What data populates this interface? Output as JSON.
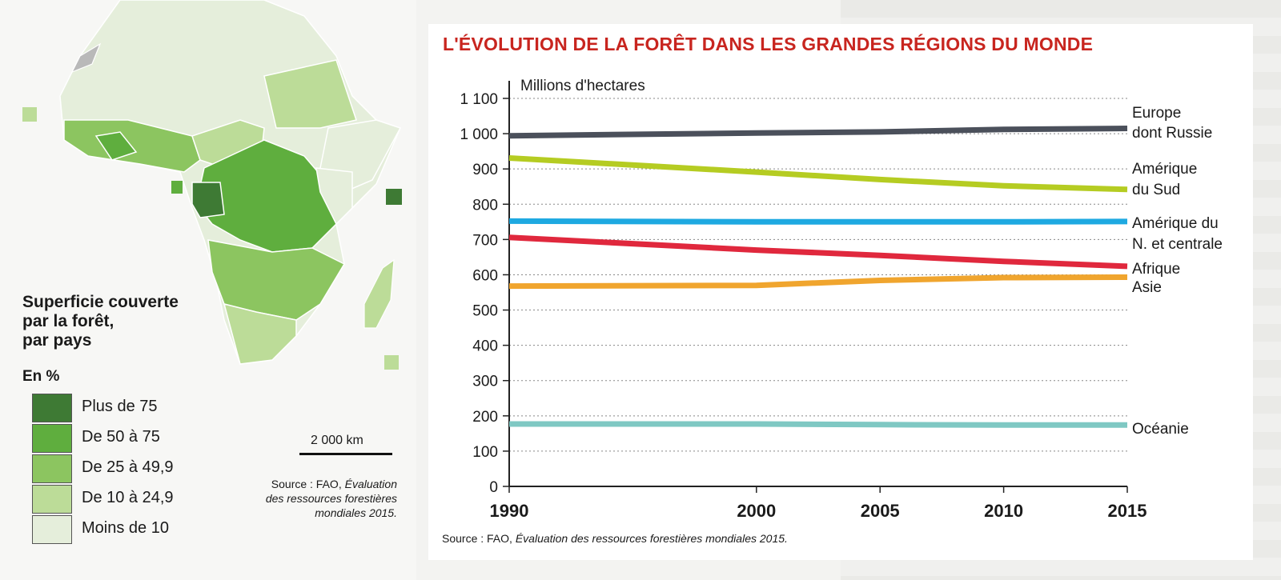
{
  "map": {
    "legend_title_lines": [
      "Superficie couverte",
      "par la forêt,",
      "par pays"
    ],
    "legend_unit": "En %",
    "legend_items": [
      {
        "label": "Plus de 75",
        "color": "#3e7a34"
      },
      {
        "label": "De 50 à 75",
        "color": "#5fae3e"
      },
      {
        "label": "De 25 à 49,9",
        "color": "#8cc560"
      },
      {
        "label": "De 10 à 24,9",
        "color": "#bcdc98"
      },
      {
        "label": "Moins de 10",
        "color": "#e5eedb"
      }
    ],
    "scale_label": "2 000 km",
    "source_prefix": "Source : FAO,",
    "source_italic": "Évaluation des ressources forestières mondiales 2015."
  },
  "chart_data": {
    "type": "line",
    "title": "L'ÉVOLUTION DE LA FORÊT DANS LES GRANDES RÉGIONS DU MONDE",
    "ylabel": "Millions d'hectares",
    "xlabel": "",
    "x": [
      1990,
      2000,
      2005,
      2010,
      2015
    ],
    "x_tick_labels": [
      "1990",
      "2000",
      "2005",
      "2010",
      "2015"
    ],
    "ylim": [
      0,
      1100
    ],
    "y_ticks": [
      0,
      100,
      200,
      300,
      400,
      500,
      600,
      700,
      800,
      900,
      1000,
      1100
    ],
    "y_tick_labels": [
      "0",
      "100",
      "200",
      "300",
      "400",
      "500",
      "600",
      "700",
      "800",
      "900",
      "1 000",
      "1 100"
    ],
    "grid": true,
    "series": [
      {
        "name": "Europe dont Russie",
        "label_lines": [
          "Europe",
          "dont Russie"
        ],
        "color": "#4b505b",
        "values": [
          994,
          1002,
          1005,
          1012,
          1015
        ]
      },
      {
        "name": "Amérique du Sud",
        "label_lines": [
          "Amérique",
          "du Sud"
        ],
        "color": "#b5cc22",
        "values": [
          931,
          891,
          870,
          852,
          842
        ]
      },
      {
        "name": "Amérique du N. et centrale",
        "label_lines": [
          "Amérique du",
          "N. et centrale"
        ],
        "color": "#1ea9e1",
        "values": [
          752,
          750,
          750,
          750,
          751
        ]
      },
      {
        "name": "Afrique",
        "label_lines": [
          "Afrique"
        ],
        "color": "#e0283d",
        "values": [
          706,
          670,
          655,
          638,
          624
        ]
      },
      {
        "name": "Asie",
        "label_lines": [
          "Asie"
        ],
        "color": "#f0a52e",
        "values": [
          568,
          570,
          584,
          592,
          593
        ]
      },
      {
        "name": "Océanie",
        "label_lines": [
          "Océanie"
        ],
        "color": "#7fc8c3",
        "values": [
          177,
          177,
          175,
          174,
          174
        ]
      }
    ],
    "source_prefix": "Source : FAO,",
    "source_italic": "Évaluation des ressources forestières mondiales 2015."
  }
}
